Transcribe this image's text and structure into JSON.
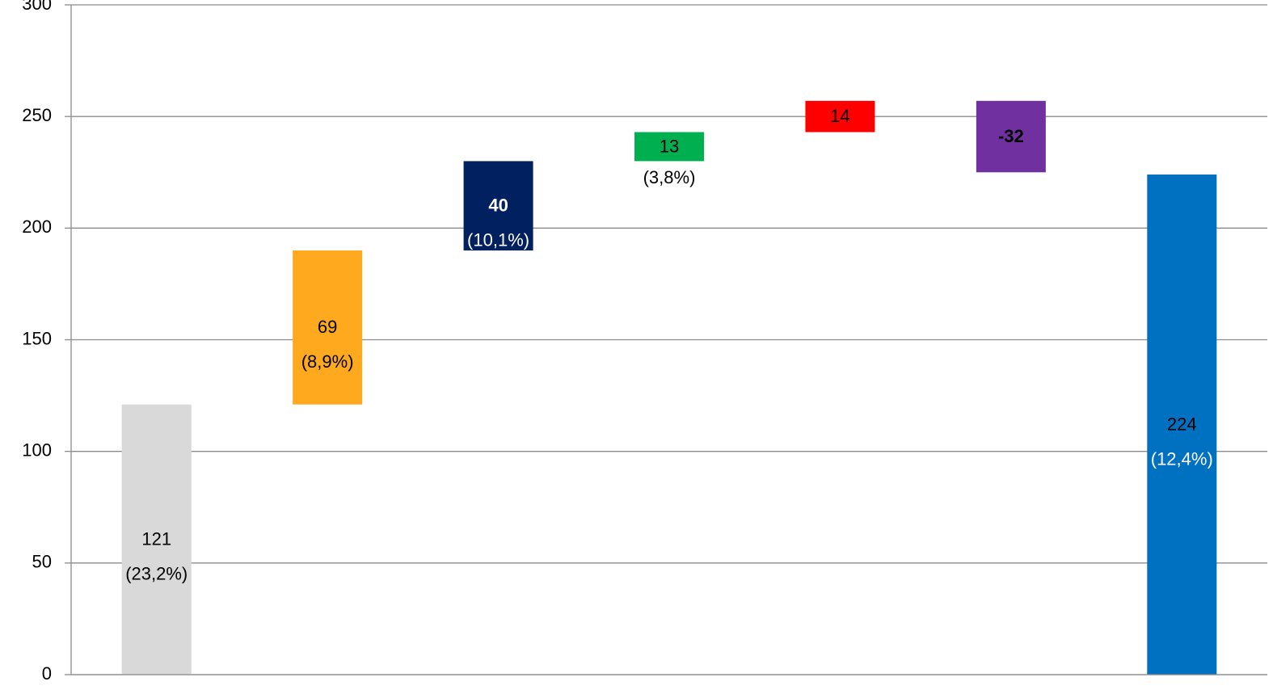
{
  "chart_data": {
    "type": "waterfall",
    "categories": [
      null,
      null,
      null,
      null,
      null,
      null,
      null
    ],
    "values": [
      121,
      69,
      40,
      13,
      14,
      -32,
      224
    ],
    "measures": [
      "absolute",
      "relative",
      "relative",
      "relative",
      "relative",
      "relative",
      "total"
    ],
    "percent_labels": [
      "(23,2%)",
      "(8,9%)",
      "(10,1%)",
      "(3,8%)",
      null,
      null,
      "(12,4%)"
    ],
    "colors": [
      "#d9d9d9",
      "#ffa91e",
      "#002060",
      "#00b050",
      "#ff0000",
      "#7030a0",
      "#0070c0"
    ],
    "ylim": [
      0,
      300
    ],
    "yticks": [
      0,
      50,
      100,
      150,
      200,
      250,
      300
    ],
    "grid": true
  }
}
